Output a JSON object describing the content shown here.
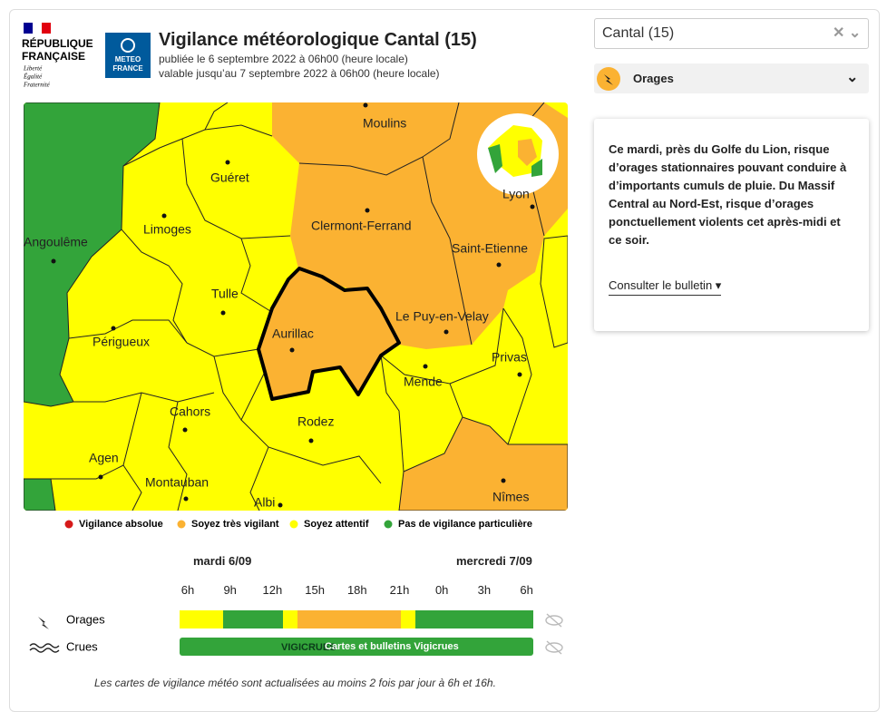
{
  "header": {
    "republic": [
      "RÉPUBLIQUE",
      "FRANÇAISE"
    ],
    "motto": [
      "Liberté",
      "Égalité",
      "Fraternité"
    ],
    "meteo_logo": [
      "METEO",
      "FRANCE"
    ],
    "title": "Vigilance météorologique Cantal (15)",
    "published": "publiée le 6 septembre 2022 à 06h00 (heure locale)",
    "valid_until": "valable jusqu’au 7 septembre 2022 à 06h00 (heure locale)"
  },
  "map": {
    "cities": [
      "Moulins",
      "Guéret",
      "Limoges",
      "Angoulême",
      "Clermont-Ferrand",
      "Saint-Etienne",
      "Lyon",
      "Tulle",
      "Le Puy-en-Velay",
      "Périgueux",
      "Aurillac",
      "Privas",
      "Mende",
      "Cahors",
      "Rodez",
      "Agen",
      "Montauban",
      "Albi",
      "Nîmes"
    ]
  },
  "legend": [
    "Vigilance absolue",
    "Soyez très vigilant",
    "Soyez attentif",
    "Pas de vigilance particulière"
  ],
  "timeline": {
    "days": [
      "mardi 6/09",
      "mercredi 7/09"
    ],
    "hours": [
      "6h",
      "9h",
      "12h",
      "15h",
      "18h",
      "21h",
      "0h",
      "3h",
      "6h"
    ],
    "rows": [
      "Orages",
      "Crues"
    ],
    "vigicrues_logo": "VIGICRUES",
    "vigicrues_link": "Cartes et bulletins Vigicrues"
  },
  "footer_note": "Les cartes de vigilance météo sont actualisées au moins 2 fois par jour à 6h et 16h.",
  "sidebar": {
    "select": "Cantal (15)",
    "phenomenon": "Orages",
    "bulletin": "Ce mardi, près du Golfe du Lion, risque d’orages stationnaires pouvant conduire à d’importants cumuls de pluie. Du Massif Central au Nord-Est, risque d’orages ponctuellement violents cet après-midi et ce soir.",
    "bulletin_link": "Consulter le bulletin"
  }
}
